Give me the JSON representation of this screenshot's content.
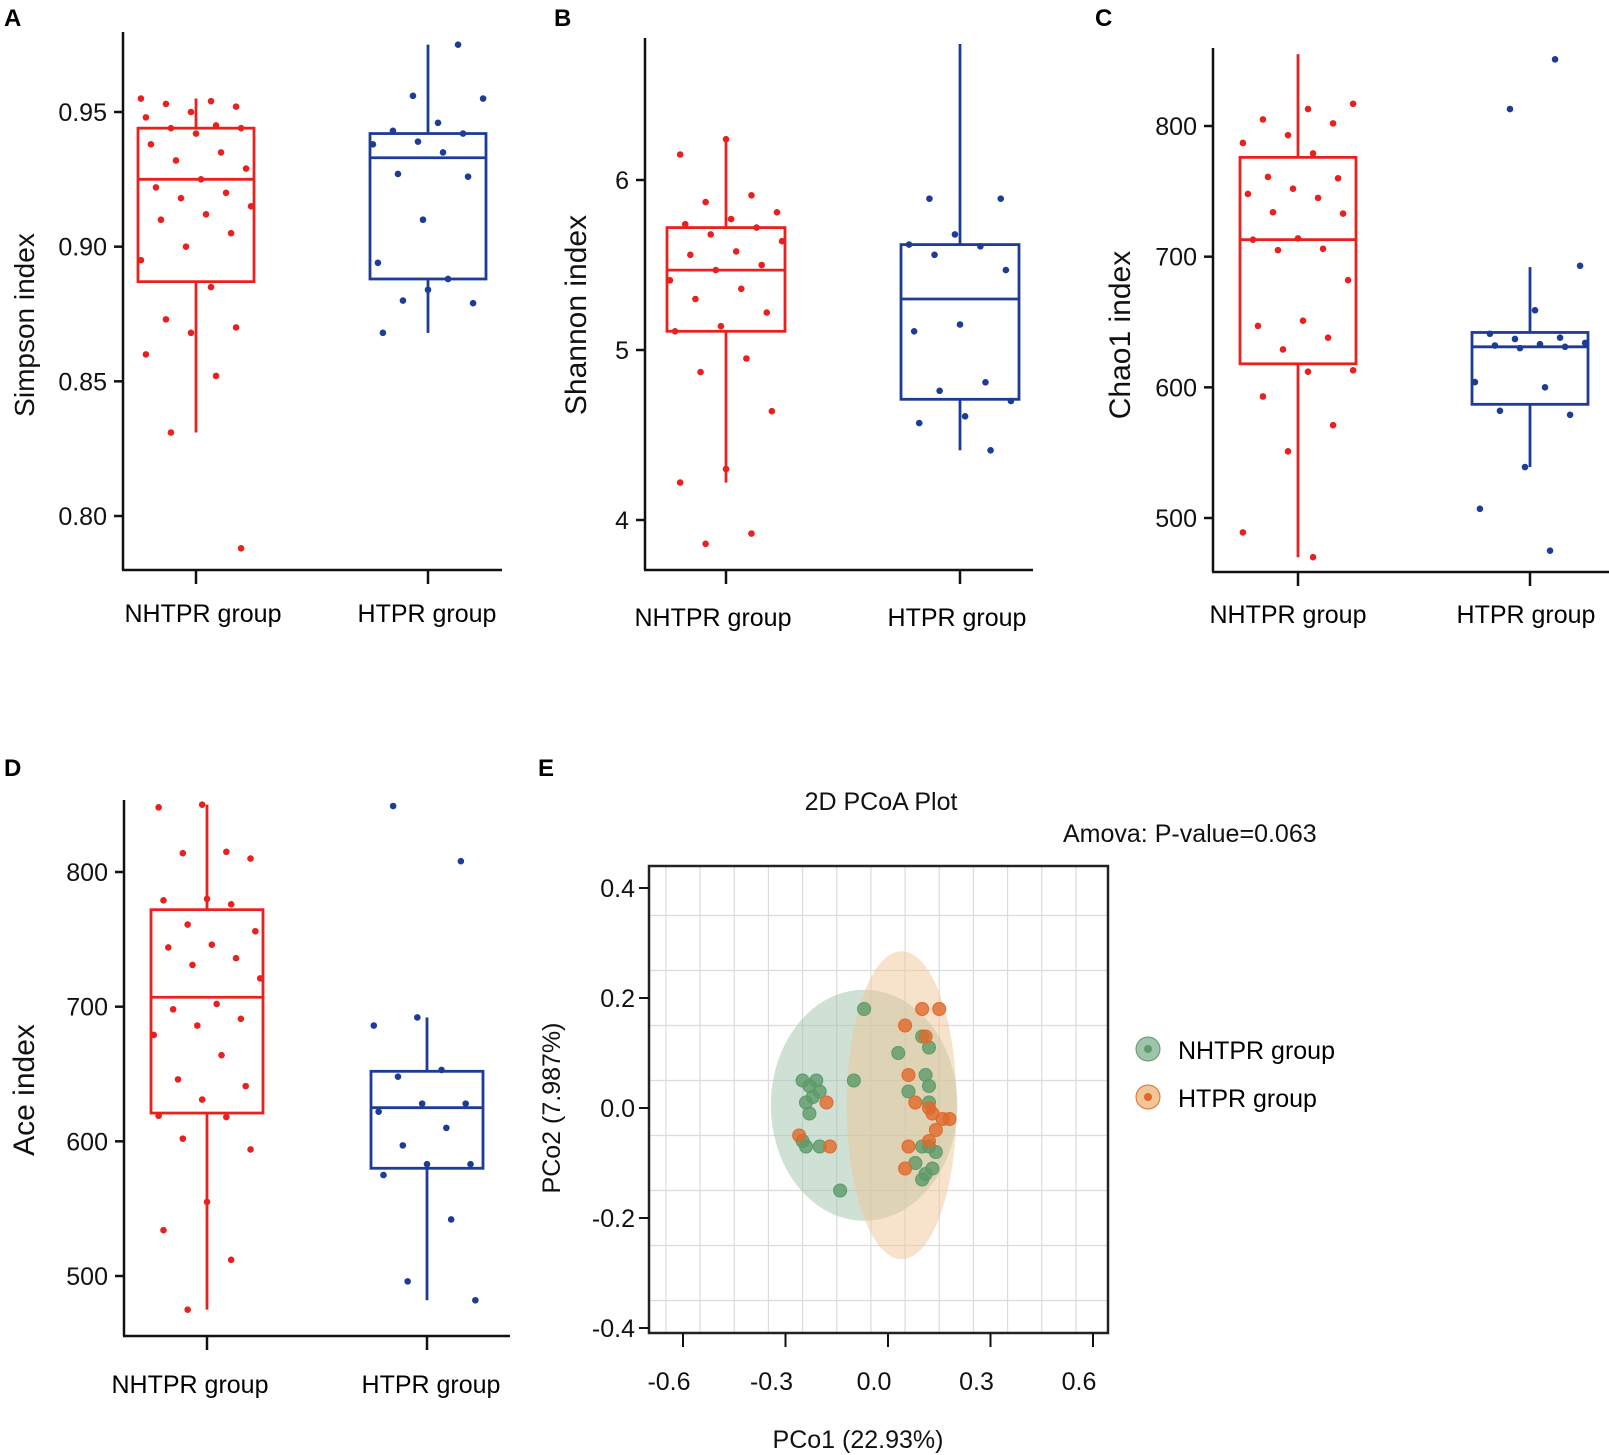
{
  "colors": {
    "nhtpr": "#e8211f",
    "htpr": "#1d3c95",
    "axis": "#111111",
    "pcoa_nhtpr_fill": "#9fc2ab",
    "pcoa_nhtpr_point": "#5c9a69",
    "pcoa_htpr_fill": "#f0c698",
    "pcoa_htpr_point": "#e0692a",
    "grid": "#dcdcdc"
  },
  "chart_data": [
    {
      "panel": "A",
      "type": "box",
      "ylabel": "Simpson index",
      "ylim": [
        0.78,
        0.98
      ],
      "yticks": [
        0.8,
        0.85,
        0.9,
        0.95
      ],
      "ytick_labels": [
        "0.80",
        "0.85",
        "0.90",
        "0.95"
      ],
      "categories": [
        "NHTPR group",
        "HTPR group"
      ],
      "boxes": [
        {
          "name": "NHTPR group",
          "min": 0.831,
          "q1": 0.887,
          "median": 0.925,
          "q3": 0.944,
          "max": 0.955,
          "points": [
            0.955,
            0.954,
            0.953,
            0.952,
            0.95,
            0.948,
            0.945,
            0.944,
            0.944,
            0.942,
            0.938,
            0.935,
            0.932,
            0.929,
            0.925,
            0.922,
            0.92,
            0.918,
            0.915,
            0.912,
            0.91,
            0.905,
            0.9,
            0.895,
            0.885,
            0.873,
            0.87,
            0.868,
            0.86,
            0.852,
            0.831,
            0.788
          ]
        },
        {
          "name": "HTPR group",
          "min": 0.868,
          "q1": 0.888,
          "median": 0.933,
          "q3": 0.942,
          "max": 0.975,
          "points": [
            0.975,
            0.956,
            0.955,
            0.946,
            0.943,
            0.942,
            0.939,
            0.938,
            0.935,
            0.927,
            0.926,
            0.91,
            0.894,
            0.888,
            0.88,
            0.879,
            0.884,
            0.868
          ]
        }
      ]
    },
    {
      "panel": "B",
      "type": "box",
      "ylabel": "Shannon index",
      "ylim": [
        3.8,
        6.8
      ],
      "yticks": [
        4,
        5,
        6
      ],
      "ytick_labels": [
        "4",
        "5",
        "6"
      ],
      "categories": [
        "NHTPR group",
        "HTPR group"
      ],
      "boxes": [
        {
          "name": "NHTPR group",
          "min": 4.22,
          "q1": 5.11,
          "median": 5.47,
          "q3": 5.72,
          "max": 6.24,
          "points": [
            6.24,
            6.15,
            5.91,
            5.87,
            5.81,
            5.77,
            5.74,
            5.72,
            5.68,
            5.64,
            5.58,
            5.56,
            5.5,
            5.47,
            5.41,
            5.36,
            5.3,
            5.22,
            5.14,
            5.11,
            4.95,
            4.87,
            4.64,
            4.3,
            4.22,
            3.92,
            3.86
          ]
        },
        {
          "name": "HTPR group",
          "min": 4.41,
          "q1": 4.71,
          "median": 5.3,
          "q3": 5.62,
          "max": 6.8,
          "points": [
            5.89,
            5.89,
            5.68,
            5.62,
            5.61,
            5.56,
            5.47,
            5.15,
            5.11,
            4.81,
            4.76,
            4.7,
            4.61,
            4.57,
            4.41
          ]
        }
      ]
    },
    {
      "panel": "C",
      "type": "box",
      "ylabel": "Chao1 index",
      "ylim": [
        460,
        860
      ],
      "yticks": [
        500,
        600,
        700,
        800
      ],
      "ytick_labels": [
        "500",
        "600",
        "700",
        "800"
      ],
      "categories": [
        "NHTPR group",
        "HTPR group"
      ],
      "boxes": [
        {
          "name": "NHTPR group",
          "min": 470,
          "q1": 618,
          "median": 713,
          "q3": 776,
          "max": 855,
          "points": [
            817,
            813,
            805,
            802,
            793,
            787,
            779,
            761,
            760,
            752,
            748,
            745,
            734,
            733,
            714,
            713,
            706,
            705,
            682,
            651,
            647,
            638,
            629,
            613,
            612,
            593,
            571,
            551,
            489,
            470
          ]
        },
        {
          "name": "HTPR group",
          "min": 539,
          "q1": 587,
          "median": 631,
          "q3": 642,
          "max": 692,
          "points": [
            851,
            813,
            693,
            659,
            641,
            638,
            637,
            634,
            633,
            632,
            631,
            630,
            604,
            600,
            582,
            579,
            539,
            507,
            475
          ]
        }
      ]
    },
    {
      "panel": "D",
      "type": "box",
      "ylabel": "Ace index",
      "ylim": [
        465,
        855
      ],
      "yticks": [
        500,
        600,
        700,
        800
      ],
      "ytick_labels": [
        "500",
        "600",
        "700",
        "800"
      ],
      "categories": [
        "NHTPR group",
        "HTPR group"
      ],
      "boxes": [
        {
          "name": "NHTPR group",
          "min": 475,
          "q1": 621,
          "median": 707,
          "q3": 772,
          "max": 850,
          "points": [
            850,
            848,
            815,
            814,
            810,
            780,
            779,
            776,
            761,
            756,
            746,
            744,
            736,
            731,
            721,
            702,
            698,
            691,
            686,
            679,
            664,
            646,
            641,
            631,
            619,
            618,
            602,
            594,
            555,
            534,
            512,
            475
          ]
        },
        {
          "name": "HTPR group",
          "min": 482,
          "q1": 580,
          "median": 625,
          "q3": 652,
          "max": 692,
          "points": [
            849,
            808,
            692,
            686,
            653,
            648,
            628,
            628,
            622,
            610,
            597,
            583,
            583,
            575,
            542,
            496,
            482
          ]
        }
      ]
    },
    {
      "panel": "E",
      "type": "scatter",
      "title": "2D PCoA Plot",
      "annotation": "Amova: P-value=0.063",
      "xlabel": "PCo1 (22.93%)",
      "ylabel": "PCo2 (7.987%)",
      "xlim": [
        -0.7,
        0.65
      ],
      "ylim": [
        -0.41,
        0.435
      ],
      "xticks": [
        -0.6,
        -0.3,
        0.0,
        0.3,
        0.6
      ],
      "xtick_labels": [
        "-0.6",
        "-0.3",
        "0.0",
        "0.3",
        "0.6"
      ],
      "yticks": [
        -0.4,
        -0.2,
        0.0,
        0.2,
        0.4
      ],
      "ytick_labels": [
        "-0.4",
        "-0.2",
        "0.0",
        "0.2",
        "0.4"
      ],
      "grid": true,
      "legend": "right",
      "series": [
        {
          "name": "NHTPR group",
          "ellipse": {
            "cx": -0.07,
            "cy": 0.005,
            "rx": 0.44,
            "ry": 0.21
          },
          "points": [
            [
              -0.07,
              0.18
            ],
            [
              -0.25,
              0.05
            ],
            [
              -0.23,
              0.04
            ],
            [
              -0.21,
              0.05
            ],
            [
              -0.24,
              0.01
            ],
            [
              -0.22,
              0.02
            ],
            [
              -0.2,
              0.03
            ],
            [
              -0.23,
              -0.01
            ],
            [
              -0.25,
              -0.06
            ],
            [
              -0.24,
              -0.07
            ],
            [
              -0.2,
              -0.07
            ],
            [
              -0.1,
              0.05
            ],
            [
              -0.14,
              -0.15
            ],
            [
              0.03,
              0.1
            ],
            [
              0.1,
              0.13
            ],
            [
              0.12,
              0.11
            ],
            [
              0.11,
              0.06
            ],
            [
              0.06,
              0.03
            ],
            [
              0.12,
              0.01
            ],
            [
              0.1,
              -0.07
            ],
            [
              0.12,
              -0.07
            ],
            [
              0.08,
              -0.1
            ],
            [
              0.13,
              -0.11
            ],
            [
              0.11,
              -0.12
            ],
            [
              0.1,
              -0.13
            ],
            [
              0.14,
              -0.08
            ],
            [
              0.12,
              0.04
            ]
          ]
        },
        {
          "name": "HTPR group",
          "ellipse": {
            "cx": 0.04,
            "cy": 0.005,
            "rx": 0.26,
            "ry": 0.28
          },
          "points": [
            [
              0.1,
              0.18
            ],
            [
              0.15,
              0.18
            ],
            [
              0.05,
              0.15
            ],
            [
              0.11,
              0.13
            ],
            [
              0.06,
              0.06
            ],
            [
              0.08,
              0.01
            ],
            [
              -0.18,
              0.01
            ],
            [
              -0.26,
              -0.05
            ],
            [
              -0.17,
              -0.07
            ],
            [
              0.06,
              -0.07
            ],
            [
              0.12,
              -0.06
            ],
            [
              0.14,
              -0.04
            ],
            [
              0.16,
              -0.02
            ],
            [
              0.18,
              -0.02
            ],
            [
              0.13,
              -0.01
            ],
            [
              0.12,
              0.0
            ],
            [
              0.05,
              -0.11
            ]
          ]
        }
      ]
    }
  ],
  "panels": {
    "A": {
      "letter": "A",
      "x_label_1": "NHTPR group",
      "x_label_2": "HTPR group"
    },
    "B": {
      "letter": "B",
      "x_label_1": "NHTPR group",
      "x_label_2": "HTPR group"
    },
    "C": {
      "letter": "C",
      "x_label_1": "NHTPR group",
      "x_label_2": "HTPR group"
    },
    "D": {
      "letter": "D",
      "x_label_1": "NHTPR group",
      "x_label_2": "HTPR group"
    },
    "E": {
      "letter": "E"
    }
  },
  "legend": {
    "items": [
      "NHTPR group",
      "HTPR group"
    ]
  }
}
